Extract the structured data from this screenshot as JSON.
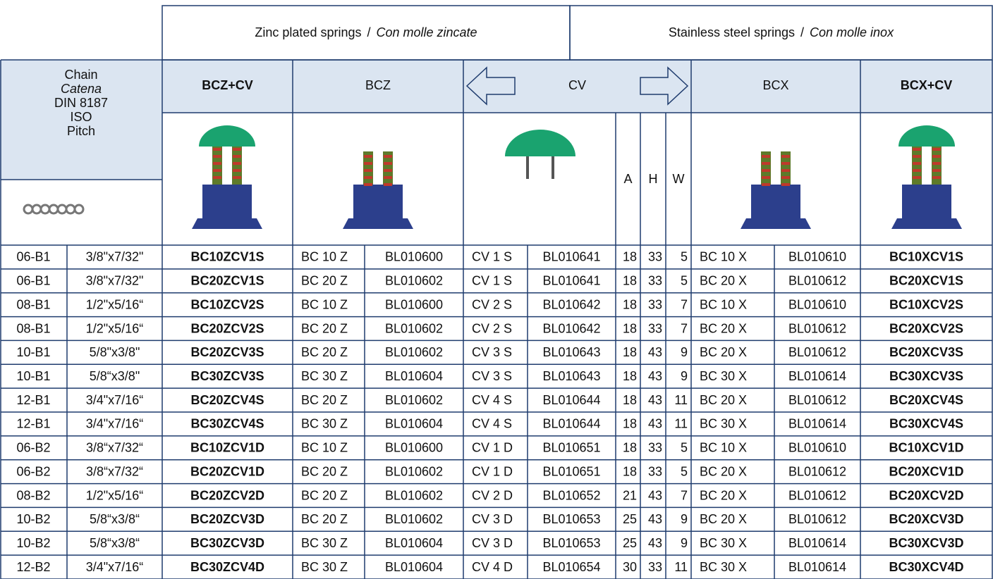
{
  "groups": [
    {
      "en": "Zinc plated springs",
      "sep": "/",
      "it": "Con molle zincate"
    },
    {
      "en": "Stainless steel springs",
      "sep": "/",
      "it": "Con molle inox"
    }
  ],
  "chain_header": [
    "Chain",
    "Catena",
    "DIN 8187",
    "ISO",
    "Pitch"
  ],
  "columns": [
    "BCZ+CV",
    "BCZ",
    "CV",
    "BCX",
    "BCX+CV"
  ],
  "dims": [
    "A",
    "H",
    "W"
  ],
  "table": {
    "rows": [
      [
        "06-B1",
        "3/8\"x7/32\"",
        "BC10ZCV1S",
        "BC 10 Z",
        "BL010600",
        "CV 1 S",
        "BL010641",
        18,
        33,
        5,
        "BC 10 X",
        "BL010610",
        "BC10XCV1S"
      ],
      [
        "06-B1",
        "3/8\"x7/32\"",
        "BC20ZCV1S",
        "BC 20 Z",
        "BL010602",
        "CV 1 S",
        "BL010641",
        18,
        33,
        5,
        "BC 20 X",
        "BL010612",
        "BC20XCV1S"
      ],
      [
        "08-B1",
        "1/2\"x5/16“",
        "BC10ZCV2S",
        "BC 10 Z",
        "BL010600",
        "CV 2 S",
        "BL010642",
        18,
        33,
        7,
        "BC 10 X",
        "BL010610",
        "BC10XCV2S"
      ],
      [
        "08-B1",
        "1/2\"x5/16“",
        "BC20ZCV2S",
        "BC 20 Z",
        "BL010602",
        "CV 2 S",
        "BL010642",
        18,
        33,
        7,
        "BC 20 X",
        "BL010612",
        "BC20XCV2S"
      ],
      [
        "10-B1",
        "5/8\"x3/8\"",
        "BC20ZCV3S",
        "BC 20 Z",
        "BL010602",
        "CV 3 S",
        "BL010643",
        18,
        43,
        9,
        "BC 20 X",
        "BL010612",
        "BC20XCV3S"
      ],
      [
        "10-B1",
        "5/8“x3/8\"",
        "BC30ZCV3S",
        "BC 30 Z",
        "BL010604",
        "CV 3 S",
        "BL010643",
        18,
        43,
        9,
        "BC 30 X",
        "BL010614",
        "BC30XCV3S"
      ],
      [
        "12-B1",
        "3/4\"x7/16“",
        "BC20ZCV4S",
        "BC 20 Z",
        "BL010602",
        "CV 4 S",
        "BL010644",
        18,
        43,
        11,
        "BC 20 X",
        "BL010612",
        "BC20XCV4S"
      ],
      [
        "12-B1",
        "3/4\"x7/16“",
        "BC30ZCV4S",
        "BC 30 Z",
        "BL010604",
        "CV 4 S",
        "BL010644",
        18,
        43,
        11,
        "BC 30 X",
        "BL010614",
        "BC30XCV4S"
      ],
      [
        "06-B2",
        "3/8“x7/32“",
        "BC10ZCV1D",
        "BC 10 Z",
        "BL010600",
        "CV 1 D",
        "BL010651",
        18,
        33,
        5,
        "BC 10 X",
        "BL010610",
        "BC10XCV1D"
      ],
      [
        "06-B2",
        "3/8“x7/32“",
        "BC20ZCV1D",
        "BC 20 Z",
        "BL010602",
        "CV 1 D",
        "BL010651",
        18,
        33,
        5,
        "BC 20 X",
        "BL010612",
        "BC20XCV1D"
      ],
      [
        "08-B2",
        "1/2\"x5/16“",
        "BC20ZCV2D",
        "BC 20 Z",
        "BL010602",
        "CV 2 D",
        "BL010652",
        21,
        43,
        7,
        "BC 20 X",
        "BL010612",
        "BC20XCV2D"
      ],
      [
        "10-B2",
        "5/8“x3/8“",
        "BC20ZCV3D",
        "BC 20 Z",
        "BL010602",
        "CV 3 D",
        "BL010653",
        25,
        43,
        9,
        "BC 20 X",
        "BL010612",
        "BC20XCV3D"
      ],
      [
        "10-B2",
        "5/8“x3/8“",
        "BC30ZCV3D",
        "BC 30 Z",
        "BL010604",
        "CV 3 D",
        "BL010653",
        25,
        43,
        9,
        "BC 30 X",
        "BL010614",
        "BC30XCV3D"
      ],
      [
        "12-B2",
        "3/4\"x7/16“",
        "BC30ZCV4D",
        "BC 30 Z",
        "BL010604",
        "CV 4 D",
        "BL010654",
        30,
        33,
        11,
        "BC 30 X",
        "BL010614",
        "BC30XCV4D"
      ]
    ]
  }
}
